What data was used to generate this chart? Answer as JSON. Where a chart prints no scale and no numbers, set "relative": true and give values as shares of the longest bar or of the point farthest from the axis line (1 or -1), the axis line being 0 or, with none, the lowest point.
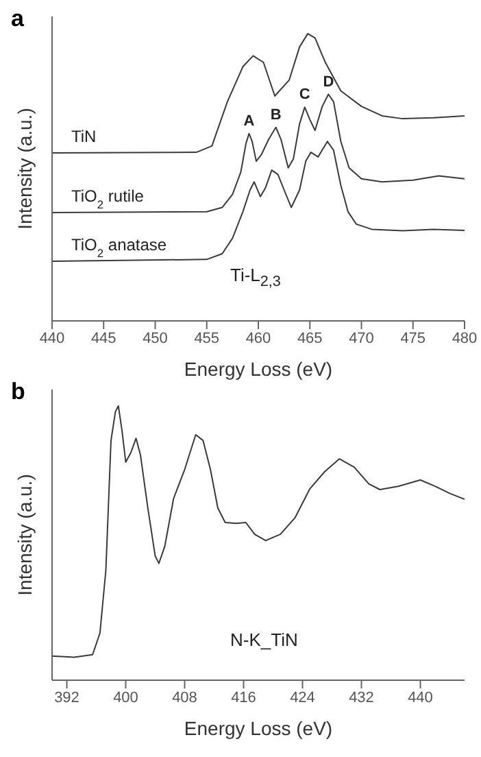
{
  "chart_data": [
    {
      "type": "line",
      "title": "a",
      "xlabel": "Energy Loss (eV)",
      "ylabel": "Intensity (a.u.)",
      "relative": true,
      "tick_labels": "x",
      "marker": "none",
      "line_style": "solid",
      "xlim": [
        440,
        480
      ],
      "xticks": [
        440,
        445,
        450,
        455,
        460,
        465,
        470,
        475,
        480
      ],
      "series": [
        {
          "name": "TiN",
          "color": "#3a3a3a",
          "x": [
            440,
            454,
            455.5,
            457,
            458.5,
            459.5,
            460.5,
            461.6,
            463,
            464,
            464.8,
            465.5,
            466.5,
            468,
            470,
            472,
            474,
            477,
            480
          ],
          "values": [
            0.585,
            0.587,
            0.609,
            0.763,
            0.885,
            0.923,
            0.9,
            0.783,
            0.839,
            0.954,
            1.0,
            0.985,
            0.9,
            0.801,
            0.747,
            0.714,
            0.704,
            0.707,
            0.714
          ]
        },
        {
          "name": "TiO$_{2}$ rutile",
          "color": "#3a3a3a",
          "x": [
            440,
            455,
            456.5,
            457.5,
            458.3,
            458.8,
            459.1,
            459.4,
            459.8,
            460.3,
            461,
            461.7,
            462.2,
            462.9,
            463.4,
            464,
            464.5,
            465,
            465.5,
            466.2,
            466.8,
            467.3,
            468,
            468.8,
            470,
            472,
            475,
            477.5,
            480
          ],
          "values": [
            0.377,
            0.38,
            0.395,
            0.441,
            0.518,
            0.617,
            0.652,
            0.625,
            0.556,
            0.579,
            0.632,
            0.674,
            0.632,
            0.533,
            0.564,
            0.686,
            0.744,
            0.701,
            0.663,
            0.747,
            0.789,
            0.763,
            0.625,
            0.533,
            0.495,
            0.484,
            0.49,
            0.505,
            0.495
          ]
        },
        {
          "name": "TiO$_{2}$ anatase",
          "color": "#3a3a3a",
          "x": [
            440,
            455,
            456.5,
            457.5,
            458.5,
            459.2,
            459.6,
            460.2,
            460.7,
            461.3,
            461.9,
            462.5,
            463.2,
            464,
            464.6,
            465.1,
            465.8,
            466.7,
            467.3,
            468,
            468.7,
            469.5,
            471,
            474,
            477,
            480
          ],
          "values": [
            0.208,
            0.214,
            0.234,
            0.288,
            0.38,
            0.456,
            0.484,
            0.433,
            0.464,
            0.525,
            0.51,
            0.456,
            0.395,
            0.456,
            0.556,
            0.587,
            0.571,
            0.625,
            0.594,
            0.472,
            0.38,
            0.337,
            0.319,
            0.314,
            0.319,
            0.315
          ]
        }
      ],
      "annotations": [
        {
          "text": "A",
          "x": 459.1,
          "y": 0.652
        },
        {
          "text": "B",
          "x": 461.7,
          "y": 0.674
        },
        {
          "text": "C",
          "x": 464.5,
          "y": 0.744
        },
        {
          "text": "D",
          "x": 466.8,
          "y": 0.789
        },
        "Ti-L$_{2,3}$"
      ]
    },
    {
      "type": "line",
      "title": "b",
      "xlabel": "Energy Loss (eV)",
      "ylabel": "Intensity (a.u.)",
      "relative": true,
      "tick_labels": "x",
      "marker": "none",
      "line_style": "solid",
      "xlim": [
        390,
        446
      ],
      "xticks": [
        392,
        400,
        408,
        416,
        424,
        432,
        440
      ],
      "series": [
        {
          "color": "#3a3a3a",
          "x": [
            390,
            393,
            395.5,
            396.5,
            397.3,
            398,
            398.6,
            399,
            399.5,
            400,
            400.7,
            401.4,
            402,
            403,
            404,
            404.5,
            405.3,
            406.5,
            408,
            409.5,
            410.5,
            411.5,
            412.5,
            413.5,
            415,
            416.3,
            417.5,
            419,
            421,
            423,
            425,
            427,
            429,
            431,
            433,
            434.5,
            437,
            440,
            442,
            444,
            446
          ],
          "values": [
            0.088,
            0.084,
            0.093,
            0.172,
            0.4,
            0.874,
            0.979,
            1.0,
            0.909,
            0.795,
            0.83,
            0.882,
            0.821,
            0.628,
            0.453,
            0.426,
            0.488,
            0.663,
            0.768,
            0.895,
            0.874,
            0.768,
            0.628,
            0.575,
            0.572,
            0.575,
            0.532,
            0.509,
            0.532,
            0.593,
            0.698,
            0.76,
            0.807,
            0.777,
            0.716,
            0.695,
            0.707,
            0.73,
            0.707,
            0.681,
            0.66
          ]
        }
      ],
      "annotations": [
        "N-K_TiN"
      ]
    }
  ]
}
